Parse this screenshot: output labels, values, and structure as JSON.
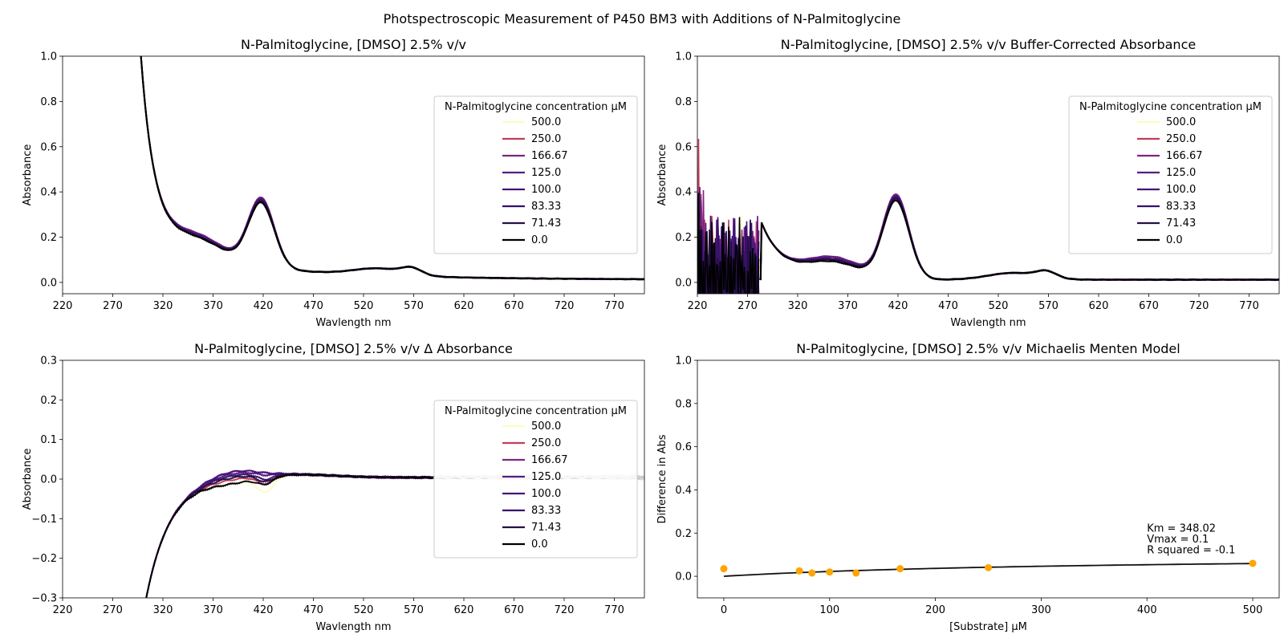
{
  "suptitle": "Photspectroscopic Measurement of P450 BM3 with Additions of N-Palmitoglycine",
  "legend": {
    "title": "N-Palmitoglycine concentration µM",
    "entries": [
      "500.0",
      "250.0",
      "166.67",
      "125.0",
      "100.0",
      "83.33",
      "71.43",
      "0.0"
    ],
    "colors": [
      "#fcfdbf",
      "#c23c5a",
      "#7f2480",
      "#5a1a80",
      "#43147a",
      "#36106b",
      "#251045",
      "#000000"
    ]
  },
  "chart_data": [
    {
      "type": "line",
      "title": "N-Palmitoglycine, [DMSO] 2.5% v/v",
      "xlabel": "Wavlength nm",
      "ylabel": "Absorbance",
      "xlim": [
        220,
        800
      ],
      "ylim": [
        -0.05,
        1.0
      ],
      "xticks": [
        220,
        270,
        320,
        370,
        420,
        470,
        520,
        570,
        620,
        670,
        720,
        770
      ],
      "yticks": [
        0.0,
        0.2,
        0.4,
        0.6,
        0.8,
        1.0
      ],
      "ytick_labels": [
        "0.0",
        "0.2",
        "0.4",
        "0.6",
        "0.8",
        "1.0"
      ],
      "legend_position": "center-right",
      "series": [
        {
          "name": "500.0",
          "peak420": 0.415,
          "plateau350": 0.17
        },
        {
          "name": "250.0",
          "peak420": 0.42,
          "plateau350": 0.18
        },
        {
          "name": "166.67",
          "peak420": 0.42,
          "plateau350": 0.185
        },
        {
          "name": "125.0",
          "peak420": 0.415,
          "plateau350": 0.18
        },
        {
          "name": "100.0",
          "peak420": 0.41,
          "plateau350": 0.17
        },
        {
          "name": "83.33",
          "peak420": 0.405,
          "plateau350": 0.165
        },
        {
          "name": "71.43",
          "peak420": 0.4,
          "plateau350": 0.16
        },
        {
          "name": "0.0",
          "peak420": 0.39,
          "plateau350": 0.155
        }
      ]
    },
    {
      "type": "line",
      "title": "N-Palmitoglycine, [DMSO] 2.5% v/v Buffer-Corrected Absorbance",
      "xlabel": "Wavlength nm",
      "ylabel": "Absorbance",
      "xlim": [
        220,
        800
      ],
      "ylim": [
        -0.05,
        1.0
      ],
      "xticks": [
        220,
        270,
        320,
        370,
        420,
        470,
        520,
        570,
        620,
        670,
        720,
        770
      ],
      "yticks": [
        0.0,
        0.2,
        0.4,
        0.6,
        0.8,
        1.0
      ],
      "ytick_labels": [
        "0.0",
        "0.2",
        "0.4",
        "0.6",
        "0.8",
        "1.0"
      ],
      "legend_position": "center-right",
      "series": [
        {
          "name": "500.0",
          "peak420": 0.415,
          "plateau350": 0.14
        },
        {
          "name": "250.0",
          "peak420": 0.42,
          "plateau350": 0.145
        },
        {
          "name": "166.67",
          "peak420": 0.42,
          "plateau350": 0.15
        },
        {
          "name": "125.0",
          "peak420": 0.415,
          "plateau350": 0.145
        },
        {
          "name": "100.0",
          "peak420": 0.41,
          "plateau350": 0.135
        },
        {
          "name": "83.33",
          "peak420": 0.405,
          "plateau350": 0.13
        },
        {
          "name": "71.43",
          "peak420": 0.4,
          "plateau350": 0.125
        },
        {
          "name": "0.0",
          "peak420": 0.39,
          "plateau350": 0.115
        }
      ]
    },
    {
      "type": "line",
      "title": "N-Palmitoglycine, [DMSO] 2.5% v/v Δ Absorbance",
      "xlabel": "Wavlength nm",
      "ylabel": "Absorbance",
      "xlim": [
        220,
        800
      ],
      "ylim": [
        -0.3,
        0.3
      ],
      "xticks": [
        220,
        270,
        320,
        370,
        420,
        470,
        520,
        570,
        620,
        670,
        720,
        770
      ],
      "yticks": [
        -0.3,
        -0.2,
        -0.1,
        0.0,
        0.1,
        0.2,
        0.3
      ],
      "ytick_labels": [
        "−0.3",
        "−0.2",
        "−0.1",
        "0.0",
        "0.1",
        "0.2",
        "0.3"
      ],
      "legend_position": "center-right",
      "series": [
        {
          "name": "500.0",
          "bump390": -0.01,
          "dip420": -0.04
        },
        {
          "name": "250.0",
          "bump390": 0.0,
          "dip420": -0.02
        },
        {
          "name": "166.67",
          "bump390": 0.02,
          "dip420": 0.005
        },
        {
          "name": "125.0",
          "bump390": 0.015,
          "dip420": 0.0
        },
        {
          "name": "100.0",
          "bump390": 0.02,
          "dip420": 0.005
        },
        {
          "name": "83.33",
          "bump390": 0.01,
          "dip420": -0.01
        },
        {
          "name": "71.43",
          "bump390": 0.005,
          "dip420": -0.015
        },
        {
          "name": "0.0",
          "bump390": -0.01,
          "dip420": -0.02
        }
      ]
    },
    {
      "type": "scatter",
      "title": "N-Palmitoglycine, [DMSO] 2.5% v/v Michaelis Menten Model",
      "xlabel": "[Substrate] µM",
      "ylabel": "Difference in Abs",
      "xlim": [
        -25,
        525
      ],
      "ylim": [
        -0.1,
        1.0
      ],
      "xticks": [
        0,
        100,
        200,
        300,
        400,
        500
      ],
      "yticks": [
        0.0,
        0.2,
        0.4,
        0.6,
        0.8,
        1.0
      ],
      "ytick_labels": [
        "0.0",
        "0.2",
        "0.4",
        "0.6",
        "0.8",
        "1.0"
      ],
      "points": {
        "x": [
          0,
          71.43,
          83.33,
          100,
          125,
          166.67,
          250,
          500
        ],
        "y": [
          0.035,
          0.025,
          0.015,
          0.02,
          0.015,
          0.035,
          0.04,
          0.06
        ]
      },
      "fit": {
        "km": 348.02,
        "vmax": 0.1
      },
      "point_color": "#ffa500",
      "annotations": [
        "Km = 348.02",
        "Vmax = 0.1",
        "R squared = -0.1"
      ]
    }
  ]
}
